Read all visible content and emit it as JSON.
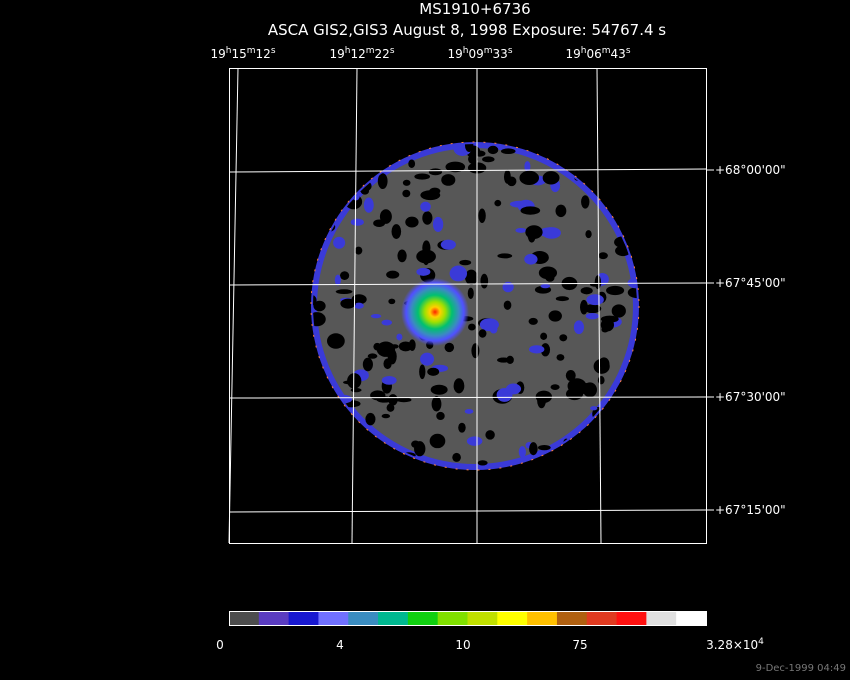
{
  "header": {
    "title": "MS1910+6736",
    "subtitle": "ASCA GIS2,GIS3 August 8, 1998 Exposure: 54767.4 s"
  },
  "ra_labels": [
    [
      "19",
      "h",
      "15",
      "m",
      "12",
      "s"
    ],
    [
      "19",
      "h",
      "12",
      "m",
      "22",
      "s"
    ],
    [
      "19",
      "h",
      "09",
      "m",
      "33",
      "s"
    ],
    [
      "19",
      "h",
      "06",
      "m",
      "43",
      "s"
    ]
  ],
  "dec_labels": [
    "+68°00'00\"",
    "+67°45'00\"",
    "+67°30'00\"",
    "+67°15'00\""
  ],
  "colorbar": {
    "colors": [
      "#4d4d4d",
      "#5a3cc0",
      "#1818d0",
      "#7070ff",
      "#3a8cc0",
      "#00b890",
      "#10d010",
      "#80e000",
      "#c0e000",
      "#ffff00",
      "#ffc000",
      "#b06010",
      "#e03a20",
      "#ff1010",
      "#e0e0e0",
      "#ffffff"
    ],
    "labels": [
      [
        "0"
      ],
      [
        "4"
      ],
      [
        "10"
      ],
      [
        "75"
      ],
      [
        "3.28×10",
        "4"
      ]
    ]
  },
  "timestamp": "9-Dec-1999 04:49"
}
